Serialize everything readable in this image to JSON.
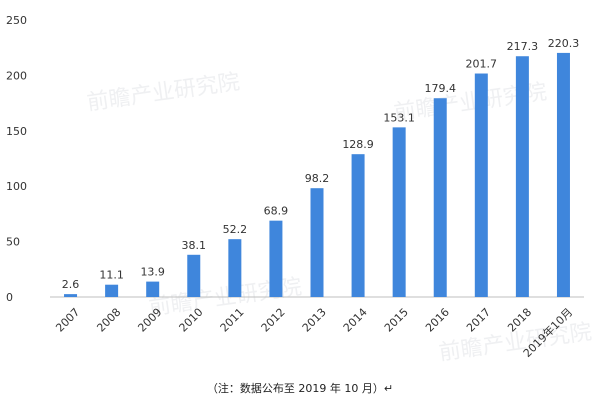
{
  "chart_data": {
    "type": "bar",
    "categories": [
      "2007",
      "2008",
      "2009",
      "2010",
      "2011",
      "2012",
      "2013",
      "2014",
      "2015",
      "2016",
      "2017",
      "2018",
      "2019年10月"
    ],
    "values": [
      2.6,
      11.1,
      13.9,
      38.1,
      52.2,
      68.9,
      98.2,
      128.9,
      153.1,
      179.4,
      201.7,
      217.3,
      220.3
    ],
    "ylim": [
      0,
      250
    ],
    "yticks": [
      0,
      50,
      100,
      150,
      200,
      250
    ],
    "grid": false,
    "colors": {
      "bar": "#3f86dc",
      "text": "#333333",
      "axis": "#bfbfbf"
    }
  },
  "footnote": "（注：数据公布至 2019 年 10 月）↵",
  "watermark": "前瞻产业研究院"
}
